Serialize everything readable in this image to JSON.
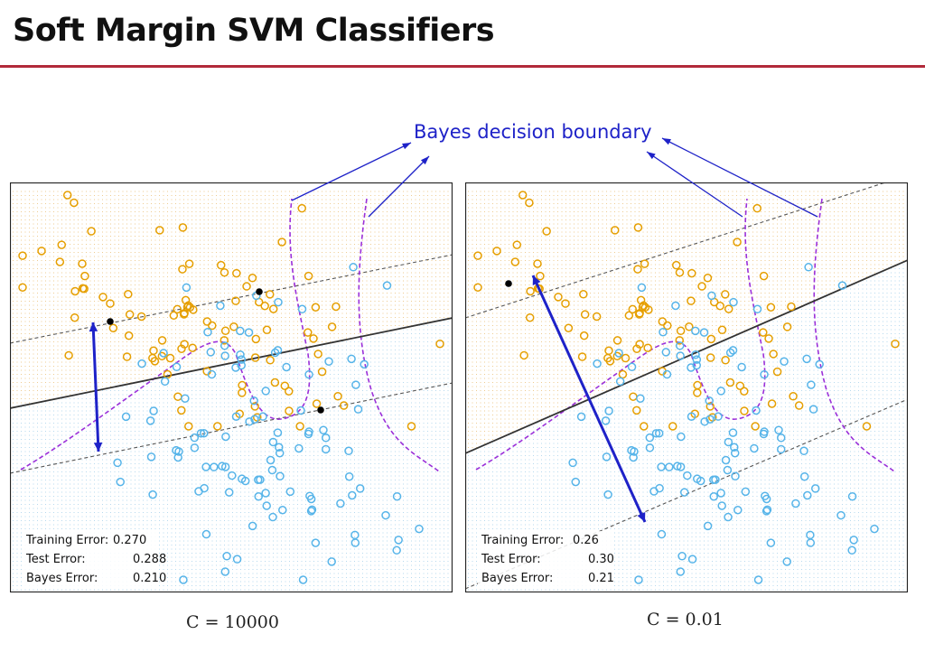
{
  "slide": {
    "title": "Soft Margin SVM Classifiers",
    "accent_color": "#b22a3a"
  },
  "annotation": {
    "text": "Bayes decision boundary",
    "color": "#1e22c8"
  },
  "colors": {
    "orange": "#e69f00",
    "blue": "#56b4e9",
    "boundary": "#9b30d9",
    "margin_arrow": "#1e22c8"
  },
  "chart_data": [
    {
      "type": "scatter",
      "caption": "C = 10000",
      "errors": [
        {
          "label": "Training Error:",
          "value": "0.270"
        },
        {
          "label": "Test Error:",
          "value": "0.288"
        },
        {
          "label": "Bayes Error:",
          "value": "0.210"
        }
      ]
    },
    {
      "type": "scatter",
      "caption": "C = 0.01",
      "errors": [
        {
          "label": "Training Error:",
          "value": "0.26"
        },
        {
          "label": "Test Error:",
          "value": "0.30"
        },
        {
          "label": "Bayes Error:",
          "value": "0.21"
        }
      ]
    }
  ]
}
